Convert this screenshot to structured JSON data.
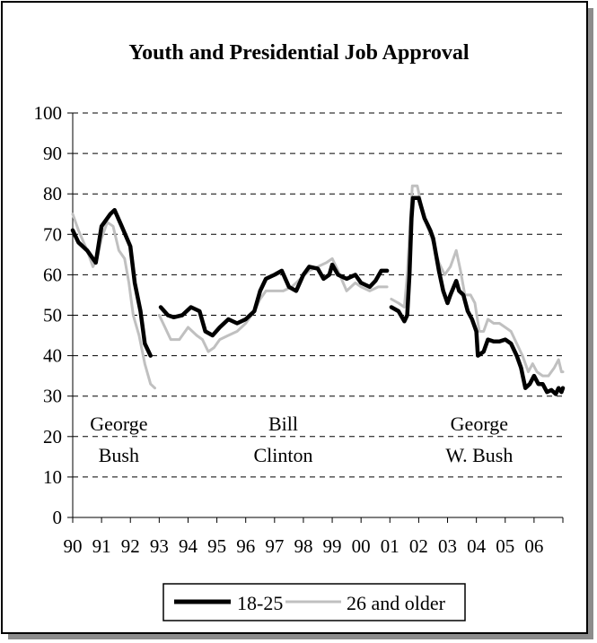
{
  "chart_data": {
    "type": "line",
    "title": "Youth and Presidential Job Approval",
    "xlabel": "",
    "ylabel": "",
    "ylim": [
      0,
      100
    ],
    "yticks": [
      0,
      10,
      20,
      30,
      40,
      50,
      60,
      70,
      80,
      90,
      100
    ],
    "xlim": [
      1990,
      2007
    ],
    "xtick_labels": [
      "90",
      "91",
      "92",
      "93",
      "94",
      "95",
      "96",
      "97",
      "98",
      "99",
      "00",
      "01",
      "02",
      "03",
      "04",
      "05",
      "06"
    ],
    "grid": "horizontal-dashed",
    "legend_position": "bottom-center",
    "annotations": [
      {
        "lines": [
          "George",
          "Bush"
        ],
        "x": 1991.6
      },
      {
        "lines": [
          "Bill",
          "Clinton"
        ],
        "x": 1997.3
      },
      {
        "lines": [
          "George",
          "W. Bush"
        ],
        "x": 2004.1
      }
    ],
    "series": [
      {
        "name": "18-25",
        "color": "#000000",
        "segments": [
          [
            [
              1990.0,
              71
            ],
            [
              1990.2,
              68
            ],
            [
              1990.5,
              66
            ],
            [
              1990.8,
              63
            ],
            [
              1991.0,
              72
            ],
            [
              1991.3,
              75
            ],
            [
              1991.45,
              76
            ],
            [
              1991.7,
              72
            ],
            [
              1992.0,
              67
            ],
            [
              1992.15,
              58
            ],
            [
              1992.35,
              51
            ],
            [
              1992.5,
              43
            ],
            [
              1992.7,
              40
            ]
          ],
          [
            [
              1993.05,
              52
            ],
            [
              1993.3,
              50
            ],
            [
              1993.5,
              49.5
            ],
            [
              1993.8,
              50
            ],
            [
              1994.1,
              52
            ],
            [
              1994.4,
              51
            ],
            [
              1994.6,
              46
            ],
            [
              1994.85,
              45
            ],
            [
              1995.1,
              47
            ],
            [
              1995.4,
              49
            ],
            [
              1995.7,
              48
            ],
            [
              1996.0,
              49
            ],
            [
              1996.3,
              51
            ],
            [
              1996.5,
              56
            ],
            [
              1996.7,
              59
            ],
            [
              1997.0,
              60
            ],
            [
              1997.25,
              61
            ],
            [
              1997.5,
              57
            ],
            [
              1997.75,
              56
            ],
            [
              1998.0,
              60
            ],
            [
              1998.2,
              62
            ],
            [
              1998.5,
              61.5
            ],
            [
              1998.7,
              59
            ],
            [
              1998.9,
              60
            ],
            [
              1999.0,
              62.5
            ],
            [
              1999.2,
              60
            ],
            [
              1999.5,
              59
            ],
            [
              1999.8,
              60
            ],
            [
              2000.0,
              58
            ],
            [
              2000.3,
              57
            ],
            [
              2000.5,
              58.5
            ],
            [
              2000.7,
              61
            ],
            [
              2000.9,
              61
            ]
          ],
          [
            [
              2001.05,
              52
            ],
            [
              2001.3,
              51
            ],
            [
              2001.5,
              48.5
            ],
            [
              2001.6,
              50
            ],
            [
              2001.68,
              60
            ],
            [
              2001.75,
              74
            ],
            [
              2001.8,
              79
            ],
            [
              2002.0,
              79
            ],
            [
              2002.2,
              74
            ],
            [
              2002.4,
              71
            ],
            [
              2002.5,
              69
            ],
            [
              2002.7,
              61
            ],
            [
              2002.85,
              56
            ],
            [
              2003.0,
              53
            ],
            [
              2003.1,
              55
            ],
            [
              2003.3,
              58.5
            ],
            [
              2003.4,
              56
            ],
            [
              2003.55,
              55
            ],
            [
              2003.7,
              51
            ],
            [
              2003.85,
              49
            ],
            [
              2004.0,
              46
            ],
            [
              2004.05,
              40
            ],
            [
              2004.25,
              41
            ],
            [
              2004.4,
              44
            ],
            [
              2004.6,
              43.5
            ],
            [
              2004.8,
              43.5
            ],
            [
              2005.0,
              44
            ],
            [
              2005.2,
              43
            ],
            [
              2005.4,
              40
            ],
            [
              2005.55,
              37
            ],
            [
              2005.7,
              32
            ],
            [
              2005.85,
              33
            ],
            [
              2006.0,
              35
            ],
            [
              2006.15,
              33
            ],
            [
              2006.3,
              33
            ],
            [
              2006.45,
              31
            ],
            [
              2006.6,
              31.5
            ],
            [
              2006.75,
              30.5
            ],
            [
              2006.85,
              32
            ],
            [
              2006.95,
              31
            ],
            [
              2007.0,
              32
            ]
          ]
        ]
      },
      {
        "name": "26 and older",
        "color": "#c0c0c0",
        "segments": [
          [
            [
              1990.0,
              75
            ],
            [
              1990.2,
              71
            ],
            [
              1990.5,
              66
            ],
            [
              1990.7,
              62
            ],
            [
              1990.85,
              64
            ],
            [
              1991.0,
              69
            ],
            [
              1991.2,
              73
            ],
            [
              1991.4,
              72
            ],
            [
              1991.6,
              66
            ],
            [
              1991.8,
              64
            ],
            [
              1991.95,
              58
            ],
            [
              1992.1,
              50
            ],
            [
              1992.3,
              45
            ],
            [
              1992.5,
              38
            ],
            [
              1992.7,
              33
            ],
            [
              1992.85,
              32
            ]
          ],
          [
            [
              1993.0,
              50
            ],
            [
              1993.2,
              47
            ],
            [
              1993.4,
              44
            ],
            [
              1993.7,
              44
            ],
            [
              1994.0,
              47
            ],
            [
              1994.3,
              45
            ],
            [
              1994.5,
              44
            ],
            [
              1994.7,
              41
            ],
            [
              1994.9,
              42
            ],
            [
              1995.1,
              44
            ],
            [
              1995.4,
              45
            ],
            [
              1995.7,
              46
            ],
            [
              1996.0,
              48
            ],
            [
              1996.3,
              51
            ],
            [
              1996.5,
              54
            ],
            [
              1996.7,
              56
            ],
            [
              1997.0,
              56
            ],
            [
              1997.3,
              56
            ],
            [
              1997.6,
              57
            ],
            [
              1997.9,
              59
            ],
            [
              1998.2,
              61
            ],
            [
              1998.5,
              62
            ],
            [
              1998.8,
              63
            ],
            [
              1999.0,
              64
            ],
            [
              1999.2,
              61
            ],
            [
              1999.5,
              56
            ],
            [
              1999.8,
              58
            ],
            [
              2000.0,
              57
            ],
            [
              2000.3,
              56
            ],
            [
              2000.6,
              57
            ],
            [
              2000.9,
              57
            ]
          ],
          [
            [
              2001.05,
              54
            ],
            [
              2001.3,
              53
            ],
            [
              2001.5,
              52
            ],
            [
              2001.6,
              60
            ],
            [
              2001.7,
              73
            ],
            [
              2001.78,
              82
            ],
            [
              2001.95,
              82
            ],
            [
              2002.1,
              77
            ],
            [
              2002.3,
              72
            ],
            [
              2002.5,
              68
            ],
            [
              2002.7,
              63
            ],
            [
              2002.9,
              60
            ],
            [
              2003.1,
              62
            ],
            [
              2003.3,
              66
            ],
            [
              2003.45,
              61
            ],
            [
              2003.6,
              55
            ],
            [
              2003.8,
              55
            ],
            [
              2003.95,
              53
            ],
            [
              2004.1,
              46
            ],
            [
              2004.25,
              46
            ],
            [
              2004.4,
              49
            ],
            [
              2004.6,
              48
            ],
            [
              2004.8,
              48
            ],
            [
              2005.0,
              47
            ],
            [
              2005.2,
              46
            ],
            [
              2005.4,
              43
            ],
            [
              2005.6,
              40
            ],
            [
              2005.8,
              36
            ],
            [
              2005.95,
              38
            ],
            [
              2006.1,
              36
            ],
            [
              2006.3,
              35
            ],
            [
              2006.5,
              35
            ],
            [
              2006.7,
              37
            ],
            [
              2006.85,
              39
            ],
            [
              2006.95,
              36
            ],
            [
              2007.0,
              36
            ]
          ]
        ]
      }
    ]
  }
}
